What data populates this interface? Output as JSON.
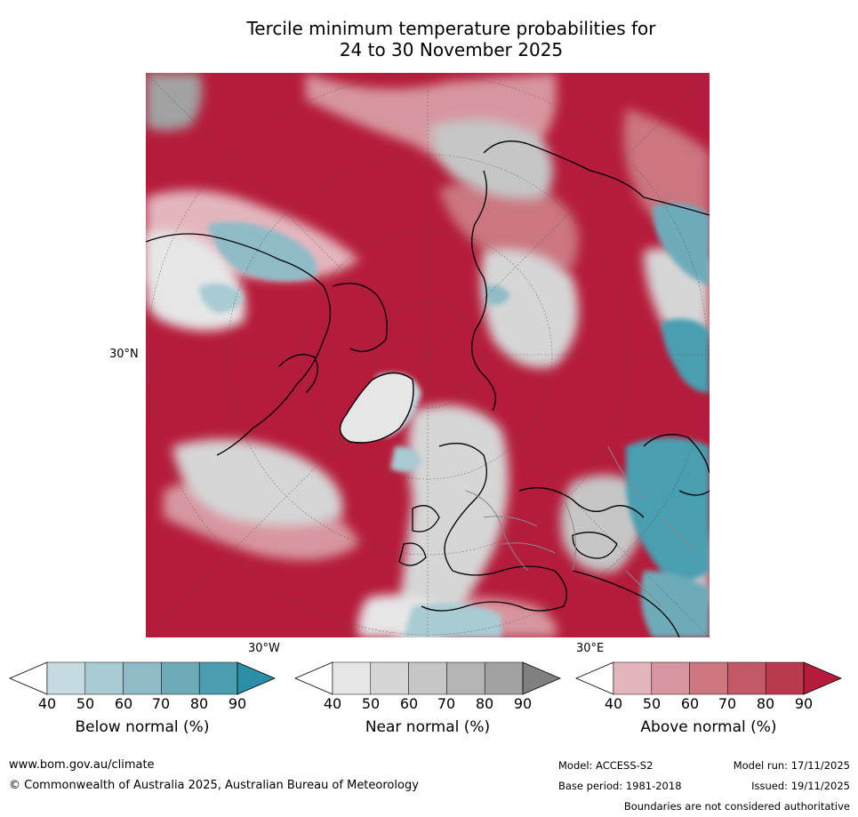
{
  "title": {
    "line1": "Tercile minimum temperature probabilities for",
    "line2": "24 to 30 November 2025"
  },
  "map": {
    "lat_label": "30°N",
    "lon_label_left": "30°W",
    "lon_label_right": "30°E"
  },
  "colorbars": [
    {
      "title": "Below normal (%)",
      "ticks": [
        "40",
        "50",
        "60",
        "70",
        "80",
        "90"
      ],
      "colors": [
        "#ffffff",
        "#c5dbe1",
        "#a9cbd3",
        "#8fbbc7",
        "#6eabb9",
        "#4a9eb0",
        "#2a8fa6"
      ]
    },
    {
      "title": "Near normal (%)",
      "ticks": [
        "40",
        "50",
        "60",
        "70",
        "80",
        "90"
      ],
      "colors": [
        "#ffffff",
        "#e6e6e6",
        "#d6d6d6",
        "#c6c6c6",
        "#b4b4b4",
        "#a2a2a2",
        "#808080"
      ]
    },
    {
      "title": "Above normal (%)",
      "ticks": [
        "40",
        "50",
        "60",
        "70",
        "80",
        "90"
      ],
      "colors": [
        "#ffffff",
        "#e3b6bd",
        "#d7969f",
        "#cb7680",
        "#c35866",
        "#b93a4d",
        "#b51c3b"
      ]
    }
  ],
  "footer": {
    "website": "www.bom.gov.au/climate",
    "copyright": "© Commonwealth of Australia 2025, Australian Bureau of Meteorology",
    "model": "Model: ACCESS-S2",
    "model_run": "Model run: 17/11/2025",
    "base_period": "Base period: 1981-2018",
    "issued": "Issued: 19/11/2025",
    "disclaimer": "Boundaries are not considered authoritative"
  }
}
